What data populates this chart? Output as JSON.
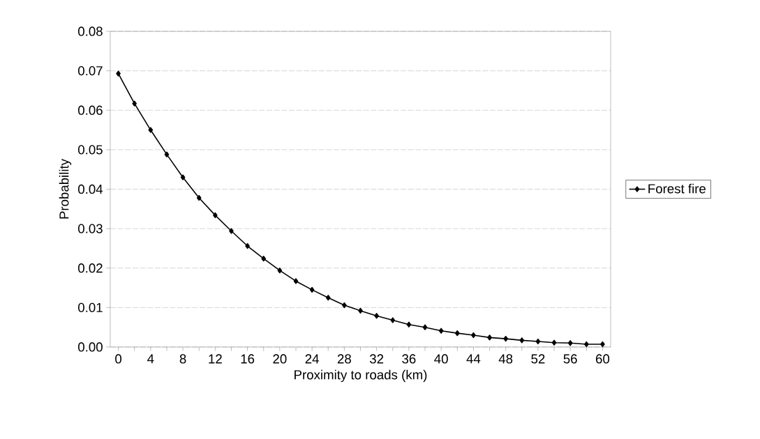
{
  "chart_data": {
    "type": "line",
    "xlabel": "Proximity to roads (km)",
    "ylabel": "Probability",
    "categories": [
      "0",
      null,
      "4",
      null,
      "8",
      null,
      "12",
      null,
      "16",
      null,
      "20",
      null,
      "24",
      null,
      "28",
      null,
      "32",
      null,
      "36",
      null,
      "40",
      null,
      "44",
      null,
      "48",
      null,
      "52",
      null,
      "56",
      null,
      "60"
    ],
    "series": [
      {
        "name": "Forest fire",
        "color": "#000000",
        "values": [
          0.0693,
          0.0617,
          0.055,
          0.0488,
          0.043,
          0.0378,
          0.0334,
          0.0294,
          0.0256,
          0.0224,
          0.0194,
          0.0167,
          0.0145,
          0.0125,
          0.0106,
          0.0092,
          0.0079,
          0.0068,
          0.0057,
          0.005,
          0.0041,
          0.0035,
          0.003,
          0.0024,
          0.0021,
          0.0017,
          0.0014,
          0.0011,
          0.001,
          0.0007,
          0.0007
        ]
      }
    ],
    "ylim": [
      0,
      0.08
    ],
    "yticks": [
      {
        "value": 0,
        "label": "0.00"
      },
      {
        "value": 0.01,
        "label": "0.01"
      },
      {
        "value": 0.02,
        "label": "0.02"
      },
      {
        "value": 0.03,
        "label": "0.03"
      },
      {
        "value": 0.04,
        "label": "0.04"
      },
      {
        "value": 0.05,
        "label": "0.05"
      },
      {
        "value": 0.06,
        "label": "0.06"
      },
      {
        "value": 0.07,
        "label": "0.07"
      },
      {
        "value": 0.08,
        "label": "0.08"
      }
    ],
    "grid": "y",
    "legend": "right",
    "marker": "diamond",
    "line_style": "solid"
  }
}
